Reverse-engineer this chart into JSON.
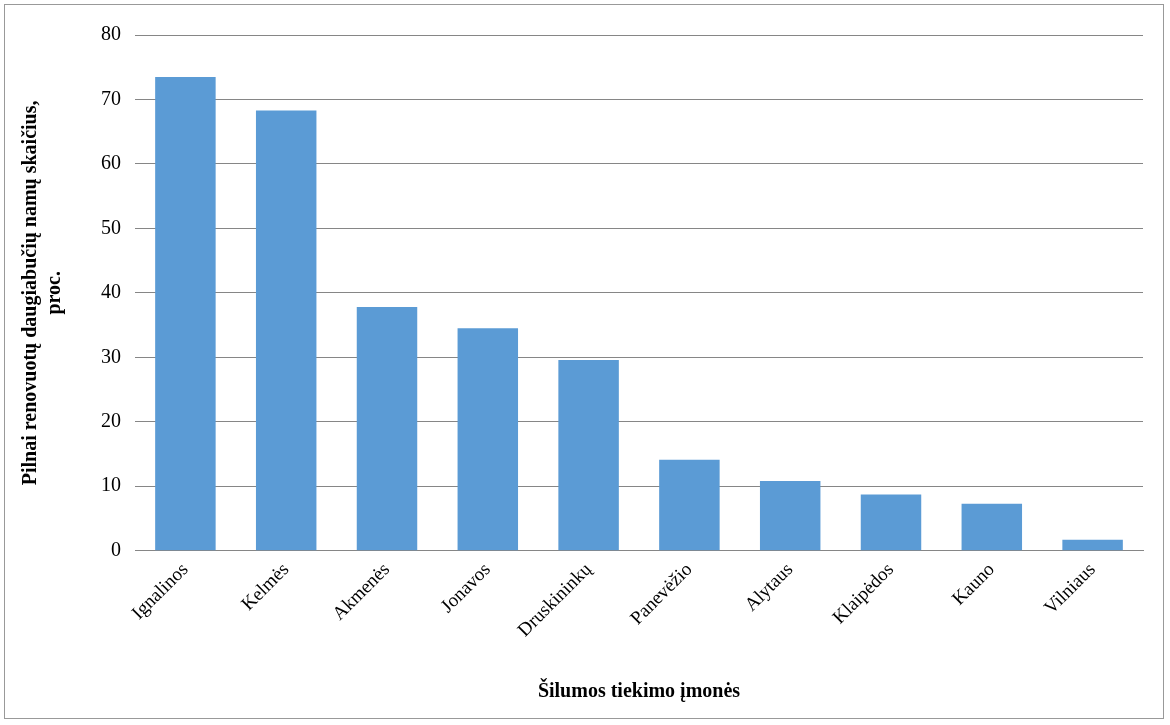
{
  "chart_data": {
    "type": "bar",
    "xlabel": "Šilumos tiekimo įmonės",
    "ylabel": "Pilnai renovuotų daugiabučių namų skaičius, proc.",
    "categories": [
      "Ignalinos",
      "Kelmės",
      "Akmenės",
      "Jonavos",
      "Druskininkų",
      "Panevėžio",
      "Alytaus",
      "Klaipėdos",
      "Kauno",
      "Vilniaus"
    ],
    "values": [
      73.5,
      68.3,
      37.8,
      34.5,
      29.6,
      14.1,
      10.8,
      8.7,
      7.3,
      1.7
    ],
    "color": "#5b9bd5",
    "ylim": [
      0,
      80
    ],
    "yticks": [
      0,
      10,
      20,
      30,
      40,
      50,
      60,
      70,
      80
    ],
    "grid": "y",
    "legend": false
  }
}
